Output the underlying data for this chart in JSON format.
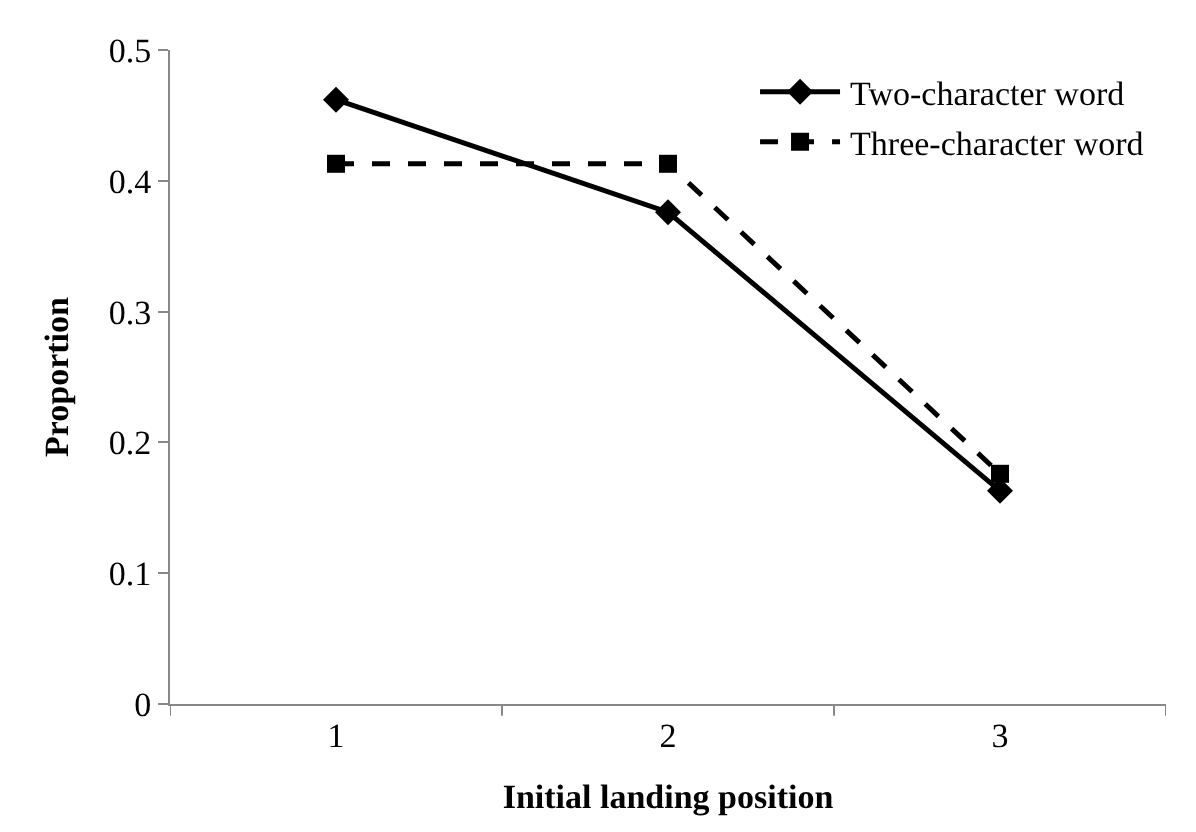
{
  "chart_data": {
    "type": "line",
    "xlabel": "Initial landing position",
    "ylabel": "Proportion",
    "categories": [
      "1",
      "2",
      "3"
    ],
    "series": [
      {
        "name": "Two-character word",
        "color": "#000000",
        "values": [
          0.462,
          0.376,
          0.163
        ],
        "marker": "diamond",
        "line_style": "solid"
      },
      {
        "name": "Three-character word",
        "color": "#000000",
        "values": [
          0.413,
          0.413,
          0.176
        ],
        "marker": "square",
        "line_style": "dashed"
      }
    ],
    "ylim": [
      0,
      0.5
    ],
    "yticks": [
      0,
      0.1,
      0.2,
      0.3,
      0.4,
      0.5
    ],
    "legend": "top right"
  }
}
